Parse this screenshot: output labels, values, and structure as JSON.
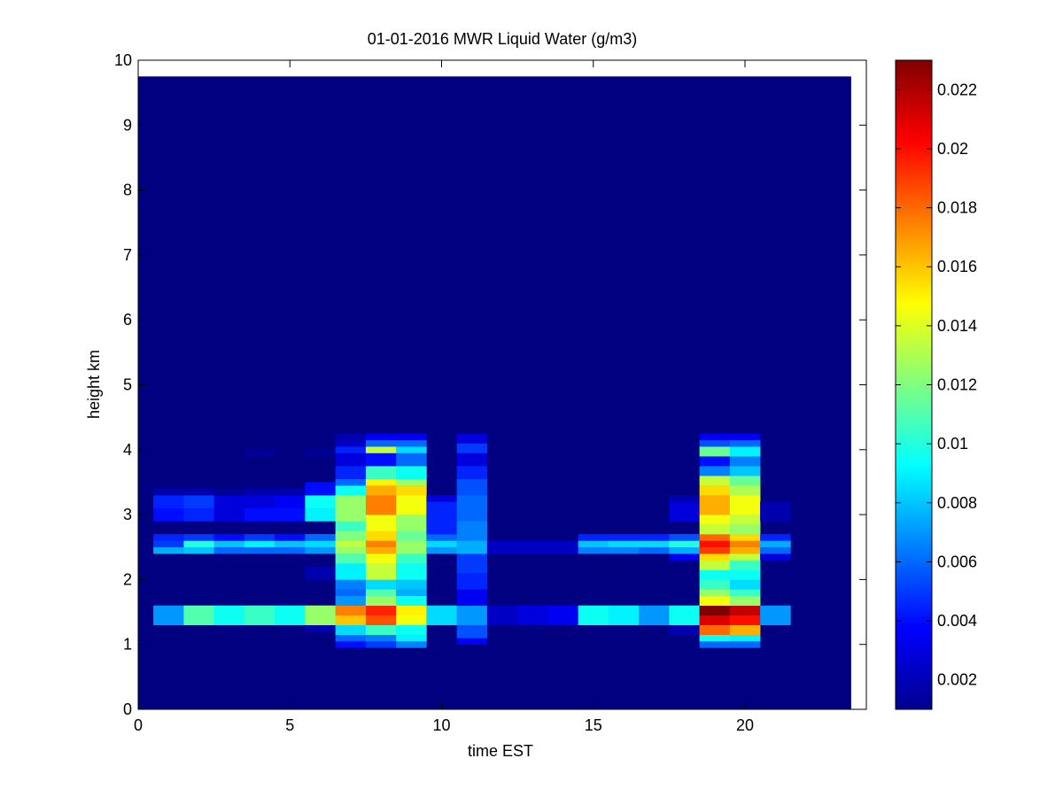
{
  "chart_data": {
    "type": "heatmap",
    "title": "01-01-2016 MWR Liquid Water (g/m3)",
    "xlabel": "time EST",
    "ylabel": "height km",
    "xlim": [
      0,
      24
    ],
    "ylim": [
      0,
      10
    ],
    "x_ticks": [
      "0",
      "5",
      "10",
      "15",
      "20"
    ],
    "y_ticks": [
      "0",
      "1",
      "2",
      "3",
      "4",
      "5",
      "6",
      "7",
      "8",
      "9",
      "10"
    ],
    "colorbar": {
      "range": [
        0.001,
        0.023
      ],
      "ticks": [
        "0.002",
        "0.004",
        "0.006",
        "0.008",
        "0.01",
        "0.012",
        "0.014",
        "0.016",
        "0.018",
        "0.02",
        "0.022"
      ],
      "colormap": "jet"
    },
    "cell": {
      "time_width_hours": 1,
      "height_step_km": 0.1
    },
    "data_extent": {
      "time": [
        0,
        23.5
      ],
      "height": [
        0,
        9.75
      ]
    },
    "background_value": 0.001,
    "columns": [
      {
        "time": 1,
        "cells": [
          [
            1.3,
            1.6,
            0.007
          ],
          [
            2.4,
            2.5,
            0.0075
          ],
          [
            2.5,
            2.6,
            0.005
          ],
          [
            2.6,
            2.7,
            0.0045
          ],
          [
            2.9,
            3.1,
            0.004
          ],
          [
            3.1,
            3.3,
            0.0045
          ],
          [
            3.3,
            3.4,
            0.002
          ]
        ]
      },
      {
        "time": 2,
        "cells": [
          [
            1.3,
            1.6,
            0.011
          ],
          [
            2.4,
            2.5,
            0.008
          ],
          [
            2.5,
            2.6,
            0.01
          ],
          [
            2.6,
            2.7,
            0.005
          ],
          [
            2.9,
            3.1,
            0.0045
          ],
          [
            3.1,
            3.3,
            0.005
          ],
          [
            3.3,
            3.4,
            0.002
          ]
        ]
      },
      {
        "time": 3,
        "cells": [
          [
            1.3,
            1.6,
            0.0095
          ],
          [
            2.4,
            2.5,
            0.006
          ],
          [
            2.5,
            2.6,
            0.008
          ],
          [
            2.6,
            2.7,
            0.004
          ],
          [
            2.9,
            3.1,
            0.003
          ],
          [
            3.1,
            3.3,
            0.003
          ],
          [
            3.3,
            3.4,
            0.0015
          ]
        ]
      },
      {
        "time": 4,
        "cells": [
          [
            1.3,
            1.6,
            0.0105
          ],
          [
            2.4,
            2.5,
            0.006
          ],
          [
            2.5,
            2.6,
            0.009
          ],
          [
            2.6,
            2.7,
            0.005
          ],
          [
            2.9,
            3.1,
            0.004
          ],
          [
            3.1,
            3.3,
            0.003
          ],
          [
            3.3,
            3.4,
            0.002
          ],
          [
            3.9,
            4.0,
            0.0015
          ]
        ]
      },
      {
        "time": 5,
        "cells": [
          [
            1.3,
            1.6,
            0.0095
          ],
          [
            2.4,
            2.5,
            0.006
          ],
          [
            2.5,
            2.6,
            0.008
          ],
          [
            2.6,
            2.7,
            0.004
          ],
          [
            2.9,
            3.1,
            0.004
          ],
          [
            3.1,
            3.3,
            0.0035
          ],
          [
            3.3,
            3.4,
            0.002
          ]
        ]
      },
      {
        "time": 6,
        "cells": [
          [
            1.2,
            1.3,
            0.002
          ],
          [
            1.3,
            1.6,
            0.0125
          ],
          [
            2.0,
            2.2,
            0.002
          ],
          [
            2.4,
            2.5,
            0.007
          ],
          [
            2.5,
            2.6,
            0.0085
          ],
          [
            2.6,
            2.7,
            0.006
          ],
          [
            2.9,
            3.1,
            0.009
          ],
          [
            3.1,
            3.3,
            0.0095
          ],
          [
            3.3,
            3.5,
            0.004
          ],
          [
            3.9,
            4.0,
            0.0015
          ]
        ]
      },
      {
        "time": 7,
        "cells": [
          [
            0.95,
            1.05,
            0.004
          ],
          [
            1.05,
            1.15,
            0.006
          ],
          [
            1.15,
            1.3,
            0.0085
          ],
          [
            1.3,
            1.45,
            0.016
          ],
          [
            1.45,
            1.6,
            0.0175
          ],
          [
            1.6,
            1.75,
            0.007
          ],
          [
            1.75,
            1.85,
            0.006
          ],
          [
            1.85,
            2.0,
            0.0065
          ],
          [
            2.0,
            2.25,
            0.009
          ],
          [
            2.25,
            2.4,
            0.011
          ],
          [
            2.4,
            2.5,
            0.0125
          ],
          [
            2.5,
            2.6,
            0.0135
          ],
          [
            2.6,
            2.75,
            0.012
          ],
          [
            2.75,
            2.9,
            0.0105
          ],
          [
            2.9,
            3.3,
            0.0125
          ],
          [
            3.3,
            3.45,
            0.0095
          ],
          [
            3.45,
            3.55,
            0.006
          ],
          [
            3.55,
            3.75,
            0.0045
          ],
          [
            3.75,
            3.95,
            0.003
          ],
          [
            3.95,
            4.05,
            0.0045
          ],
          [
            4.05,
            4.15,
            0.0025
          ],
          [
            4.15,
            4.25,
            0.002
          ]
        ]
      },
      {
        "time": 8,
        "cells": [
          [
            0.95,
            1.05,
            0.005
          ],
          [
            1.05,
            1.15,
            0.0065
          ],
          [
            1.15,
            1.3,
            0.0105
          ],
          [
            1.3,
            1.45,
            0.0185
          ],
          [
            1.45,
            1.6,
            0.0195
          ],
          [
            1.6,
            1.75,
            0.0125
          ],
          [
            1.75,
            1.85,
            0.011
          ],
          [
            1.85,
            2.0,
            0.0085
          ],
          [
            2.0,
            2.25,
            0.0135
          ],
          [
            2.25,
            2.4,
            0.0145
          ],
          [
            2.4,
            2.5,
            0.0165
          ],
          [
            2.5,
            2.6,
            0.0175
          ],
          [
            2.6,
            2.75,
            0.0155
          ],
          [
            2.75,
            3.0,
            0.0145
          ],
          [
            3.0,
            3.3,
            0.0175
          ],
          [
            3.3,
            3.45,
            0.0165
          ],
          [
            3.45,
            3.55,
            0.015
          ],
          [
            3.55,
            3.75,
            0.0105
          ],
          [
            3.75,
            3.95,
            0.004
          ],
          [
            3.95,
            4.05,
            0.0135
          ],
          [
            4.05,
            4.15,
            0.006
          ],
          [
            4.15,
            4.25,
            0.0035
          ]
        ]
      },
      {
        "time": 9,
        "cells": [
          [
            0.95,
            1.05,
            0.0065
          ],
          [
            1.05,
            1.15,
            0.009
          ],
          [
            1.15,
            1.3,
            0.0095
          ],
          [
            1.3,
            1.45,
            0.0145
          ],
          [
            1.45,
            1.6,
            0.015
          ],
          [
            1.6,
            1.75,
            0.0095
          ],
          [
            1.75,
            1.85,
            0.0075
          ],
          [
            1.85,
            2.0,
            0.008
          ],
          [
            2.0,
            2.25,
            0.0095
          ],
          [
            2.25,
            2.4,
            0.0105
          ],
          [
            2.4,
            2.6,
            0.0125
          ],
          [
            2.6,
            2.75,
            0.0115
          ],
          [
            2.75,
            3.0,
            0.0125
          ],
          [
            3.0,
            3.3,
            0.0145
          ],
          [
            3.3,
            3.45,
            0.0155
          ],
          [
            3.45,
            3.55,
            0.0125
          ],
          [
            3.55,
            3.75,
            0.0095
          ],
          [
            3.75,
            3.95,
            0.006
          ],
          [
            3.95,
            4.05,
            0.0085
          ],
          [
            4.05,
            4.15,
            0.006
          ],
          [
            4.15,
            4.25,
            0.0035
          ]
        ]
      },
      {
        "time": 10,
        "cells": [
          [
            1.3,
            1.6,
            0.0085
          ],
          [
            2.4,
            2.5,
            0.007
          ],
          [
            2.5,
            2.6,
            0.0085
          ],
          [
            2.6,
            2.7,
            0.006
          ],
          [
            2.7,
            2.9,
            0.0045
          ],
          [
            2.9,
            3.2,
            0.0045
          ],
          [
            3.2,
            3.3,
            0.003
          ]
        ]
      },
      {
        "time": 11,
        "cells": [
          [
            1.0,
            1.1,
            0.0035
          ],
          [
            1.1,
            1.3,
            0.0055
          ],
          [
            1.3,
            1.6,
            0.007
          ],
          [
            1.6,
            1.85,
            0.0035
          ],
          [
            1.85,
            2.1,
            0.0045
          ],
          [
            2.1,
            2.4,
            0.005
          ],
          [
            2.4,
            2.6,
            0.0075
          ],
          [
            2.6,
            2.9,
            0.0065
          ],
          [
            2.9,
            3.3,
            0.006
          ],
          [
            3.3,
            3.55,
            0.0055
          ],
          [
            3.55,
            3.75,
            0.0045
          ],
          [
            3.75,
            3.95,
            0.003
          ],
          [
            3.95,
            4.1,
            0.005
          ],
          [
            4.1,
            4.25,
            0.003
          ]
        ]
      },
      {
        "time": 12,
        "cells": [
          [
            1.3,
            1.6,
            0.0025
          ],
          [
            2.4,
            2.6,
            0.0025
          ]
        ]
      },
      {
        "time": 13,
        "cells": [
          [
            1.3,
            1.6,
            0.003
          ],
          [
            2.4,
            2.6,
            0.0025
          ]
        ]
      },
      {
        "time": 14,
        "cells": [
          [
            1.3,
            1.6,
            0.0035
          ],
          [
            2.4,
            2.6,
            0.0025
          ]
        ]
      },
      {
        "time": 15,
        "cells": [
          [
            1.3,
            1.6,
            0.0095
          ],
          [
            2.4,
            2.5,
            0.0065
          ],
          [
            2.5,
            2.6,
            0.008
          ],
          [
            2.6,
            2.7,
            0.0045
          ]
        ]
      },
      {
        "time": 16,
        "cells": [
          [
            1.3,
            1.6,
            0.009
          ],
          [
            2.4,
            2.5,
            0.0065
          ],
          [
            2.5,
            2.6,
            0.0085
          ],
          [
            2.6,
            2.7,
            0.0045
          ]
        ]
      },
      {
        "time": 17,
        "cells": [
          [
            1.3,
            1.6,
            0.007
          ],
          [
            2.4,
            2.5,
            0.006
          ],
          [
            2.5,
            2.6,
            0.0085
          ],
          [
            2.6,
            2.7,
            0.0045
          ]
        ]
      },
      {
        "time": 18,
        "cells": [
          [
            1.15,
            1.3,
            0.002
          ],
          [
            1.3,
            1.6,
            0.0095
          ],
          [
            2.3,
            2.4,
            0.0035
          ],
          [
            2.4,
            2.5,
            0.0075
          ],
          [
            2.5,
            2.6,
            0.01
          ],
          [
            2.6,
            2.7,
            0.0055
          ],
          [
            2.9,
            3.2,
            0.003
          ],
          [
            3.2,
            3.3,
            0.002
          ]
        ]
      },
      {
        "time": 19,
        "cells": [
          [
            0.95,
            1.05,
            0.006
          ],
          [
            1.05,
            1.15,
            0.0095
          ],
          [
            1.15,
            1.3,
            0.018
          ],
          [
            1.3,
            1.45,
            0.021
          ],
          [
            1.45,
            1.6,
            0.023
          ],
          [
            1.6,
            1.75,
            0.0145
          ],
          [
            1.75,
            1.85,
            0.0125
          ],
          [
            1.85,
            2.0,
            0.0105
          ],
          [
            2.0,
            2.15,
            0.0095
          ],
          [
            2.15,
            2.3,
            0.0135
          ],
          [
            2.3,
            2.4,
            0.0155
          ],
          [
            2.4,
            2.5,
            0.019
          ],
          [
            2.5,
            2.6,
            0.02
          ],
          [
            2.6,
            2.7,
            0.018
          ],
          [
            2.7,
            2.85,
            0.0135
          ],
          [
            2.85,
            3.0,
            0.0145
          ],
          [
            3.0,
            3.3,
            0.0165
          ],
          [
            3.3,
            3.45,
            0.0155
          ],
          [
            3.45,
            3.6,
            0.0135
          ],
          [
            3.6,
            3.75,
            0.0065
          ],
          [
            3.75,
            3.9,
            0.004
          ],
          [
            3.9,
            4.05,
            0.0115
          ],
          [
            4.05,
            4.15,
            0.0055
          ],
          [
            4.15,
            4.25,
            0.0035
          ]
        ]
      },
      {
        "time": 20,
        "cells": [
          [
            0.95,
            1.05,
            0.006
          ],
          [
            1.05,
            1.15,
            0.009
          ],
          [
            1.15,
            1.3,
            0.0165
          ],
          [
            1.3,
            1.45,
            0.02
          ],
          [
            1.45,
            1.6,
            0.0215
          ],
          [
            1.6,
            1.75,
            0.0125
          ],
          [
            1.75,
            1.85,
            0.0105
          ],
          [
            1.85,
            2.0,
            0.0085
          ],
          [
            2.0,
            2.15,
            0.0095
          ],
          [
            2.15,
            2.3,
            0.0105
          ],
          [
            2.3,
            2.4,
            0.0135
          ],
          [
            2.4,
            2.5,
            0.0165
          ],
          [
            2.5,
            2.6,
            0.0175
          ],
          [
            2.6,
            2.7,
            0.0155
          ],
          [
            2.7,
            2.85,
            0.0125
          ],
          [
            2.85,
            3.0,
            0.0135
          ],
          [
            3.0,
            3.3,
            0.0145
          ],
          [
            3.3,
            3.45,
            0.013
          ],
          [
            3.45,
            3.6,
            0.0115
          ],
          [
            3.6,
            3.75,
            0.008
          ],
          [
            3.75,
            3.9,
            0.0065
          ],
          [
            3.9,
            4.05,
            0.009
          ],
          [
            4.05,
            4.15,
            0.006
          ],
          [
            4.15,
            4.25,
            0.0035
          ]
        ]
      },
      {
        "time": 21,
        "cells": [
          [
            1.3,
            1.6,
            0.007
          ],
          [
            2.3,
            2.4,
            0.003
          ],
          [
            2.4,
            2.5,
            0.006
          ],
          [
            2.5,
            2.6,
            0.0075
          ],
          [
            2.6,
            2.7,
            0.0045
          ],
          [
            2.9,
            3.2,
            0.002
          ]
        ]
      }
    ]
  }
}
